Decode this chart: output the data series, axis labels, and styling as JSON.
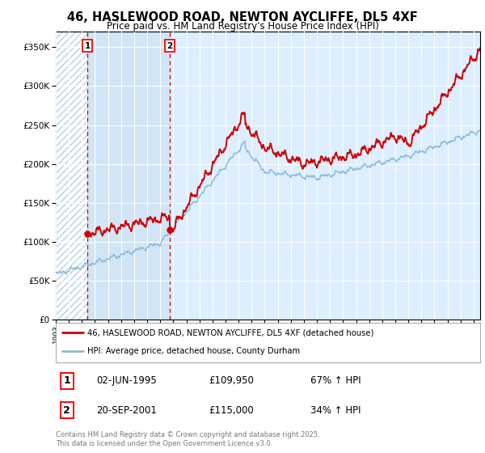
{
  "title": "46, HASLEWOOD ROAD, NEWTON AYCLIFFE, DL5 4XF",
  "subtitle": "Price paid vs. HM Land Registry's House Price Index (HPI)",
  "ylim": [
    0,
    370000
  ],
  "yticks": [
    0,
    50000,
    100000,
    150000,
    200000,
    250000,
    300000,
    350000
  ],
  "ytick_labels": [
    "£0",
    "£50K",
    "£100K",
    "£150K",
    "£200K",
    "£250K",
    "£300K",
    "£350K"
  ],
  "background_color": "#ffffff",
  "plot_bg_color": "#ddeeff",
  "hatch_color": "#b8d0e0",
  "grid_color": "#ffffff",
  "sale1": {
    "date_num": 1995.42,
    "price": 109950,
    "label": "1",
    "date_str": "02-JUN-1995",
    "pct": "67% ↑ HPI"
  },
  "sale2": {
    "date_num": 2001.72,
    "price": 115000,
    "label": "2",
    "date_str": "20-SEP-2001",
    "pct": "34% ↑ HPI"
  },
  "legend_line1": "46, HASLEWOOD ROAD, NEWTON AYCLIFFE, DL5 4XF (detached house)",
  "legend_line2": "HPI: Average price, detached house, County Durham",
  "footer": "Contains HM Land Registry data © Crown copyright and database right 2025.\nThis data is licensed under the Open Government Licence v3.0.",
  "red_line_color": "#cc0000",
  "blue_line_color": "#88bbdd",
  "xmin": 1993,
  "xmax": 2025.5
}
